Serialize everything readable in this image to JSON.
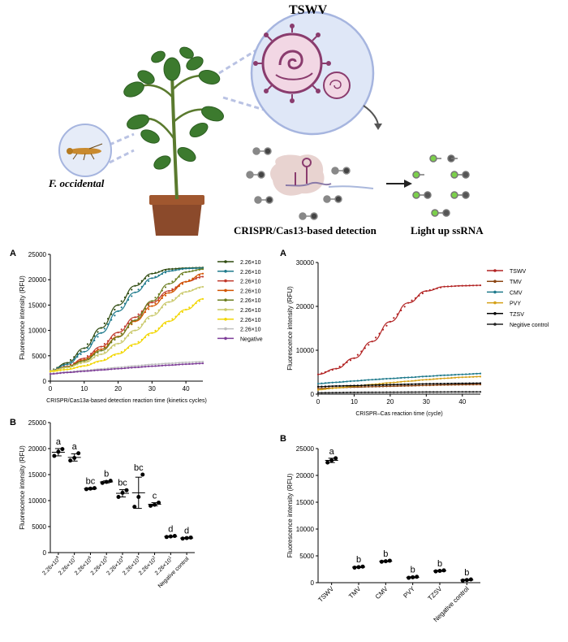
{
  "header": {
    "virus_title": "TSWV",
    "thrips_label": "F. occidental",
    "detection_label": "CRISPR/Cas13-based detection",
    "ssrna_label": "Light up ssRNA"
  },
  "panels": {
    "tl_letter": "A",
    "tr_letter": "A",
    "bl_letter": "B",
    "br_letter": "B"
  },
  "chart_data": [
    {
      "id": "tl",
      "type": "line",
      "xlabel": "CRISPR/Cas13a-based detection reaction time (kinetics cycles)",
      "ylabel": "Fluorescence intensity (RFU)",
      "xlim": [
        0,
        45
      ],
      "ylim": [
        0,
        25000
      ],
      "xticks": [
        0,
        10,
        20,
        30,
        40
      ],
      "yticks": [
        0,
        5000,
        10000,
        15000,
        20000,
        25000
      ],
      "ytick_labels": [
        "0",
        "5000",
        "10000",
        "15000",
        "20000",
        "25000"
      ],
      "x": [
        0,
        5,
        10,
        15,
        20,
        25,
        30,
        35,
        40,
        45
      ],
      "series": [
        {
          "name": "2.26×10",
          "color": "#2e4a0f",
          "values": [
            2000,
            3600,
            6500,
            10500,
            15000,
            18800,
            21200,
            22100,
            22300,
            22400
          ]
        },
        {
          "name": "2.26×10",
          "color": "#1f7a8c",
          "values": [
            2000,
            3300,
            5800,
            9500,
            13800,
            17500,
            20300,
            21700,
            22200,
            22300
          ]
        },
        {
          "name": "2.26×10",
          "color": "#c0392b",
          "values": [
            2000,
            2900,
            4500,
            6800,
            9600,
            12600,
            15500,
            17800,
            19600,
            20600
          ]
        },
        {
          "name": "2.26×10",
          "color": "#d35400",
          "values": [
            2000,
            2800,
            4200,
            6300,
            8800,
            11800,
            14800,
            17400,
            19600,
            21200
          ]
        },
        {
          "name": "2.26×10",
          "color": "#6b7d1f",
          "values": [
            2000,
            2800,
            4000,
            6000,
            8700,
            12000,
            15800,
            19200,
            21500,
            22100
          ]
        },
        {
          "name": "2.26×10",
          "color": "#c9c86a",
          "values": [
            2000,
            2700,
            3700,
            5300,
            7400,
            10000,
            12900,
            15600,
            17600,
            18600
          ]
        },
        {
          "name": "2.26×10",
          "color": "#f2d600",
          "values": [
            1900,
            2300,
            3000,
            4000,
            5400,
            7300,
            9500,
            11800,
            14100,
            16200
          ]
        },
        {
          "name": "2.26×10",
          "color": "#bfbfbf",
          "values": [
            1500,
            1800,
            2100,
            2400,
            2700,
            3000,
            3300,
            3500,
            3700,
            3850
          ]
        },
        {
          "name": "Negative",
          "color": "#7d3c98",
          "values": [
            1400,
            1700,
            1950,
            2200,
            2450,
            2700,
            2950,
            3150,
            3350,
            3500
          ]
        }
      ]
    },
    {
      "id": "tr",
      "type": "line",
      "xlabel": "CRISPR–Cas reaction time (cycle)",
      "ylabel": "Fluorescence intensity (RFU)",
      "xlim": [
        0,
        45
      ],
      "ylim": [
        0,
        30000
      ],
      "xticks": [
        0,
        10,
        20,
        30,
        40
      ],
      "yticks": [
        0,
        10000,
        20000,
        30000
      ],
      "ytick_labels": [
        "0",
        "10000",
        "20000",
        "30000"
      ],
      "x": [
        0,
        5,
        10,
        15,
        20,
        25,
        30,
        35,
        40,
        45
      ],
      "series": [
        {
          "name": "TSWV",
          "color": "#b22222",
          "values": [
            4500,
            5800,
            8200,
            12000,
            16500,
            20800,
            23500,
            24500,
            24700,
            24800
          ]
        },
        {
          "name": "TMV",
          "color": "#8b4513",
          "values": [
            1300,
            1450,
            1600,
            1700,
            1800,
            1900,
            2000,
            2100,
            2150,
            2200
          ]
        },
        {
          "name": "CMV",
          "color": "#1f7a8c",
          "values": [
            2400,
            2700,
            3000,
            3300,
            3550,
            3800,
            4050,
            4300,
            4500,
            4700
          ]
        },
        {
          "name": "PVY",
          "color": "#d4a017",
          "values": [
            1000,
            1400,
            1800,
            2200,
            2600,
            2950,
            3300,
            3600,
            3850,
            4000
          ]
        },
        {
          "name": "TZSV",
          "color": "#000000",
          "values": [
            1700,
            1850,
            1950,
            2050,
            2150,
            2250,
            2350,
            2400,
            2450,
            2500
          ]
        },
        {
          "name": "Negitive control",
          "color": "#222222",
          "values": [
            300,
            350,
            400,
            420,
            440,
            460,
            480,
            500,
            510,
            520
          ]
        }
      ]
    },
    {
      "id": "bl",
      "type": "scatter",
      "ylabel": "Fluorescence intensity (RFU)",
      "ylim": [
        0,
        25000
      ],
      "yticks": [
        0,
        5000,
        10000,
        15000,
        20000,
        25000
      ],
      "ytick_labels": [
        "0",
        "5000",
        "10000",
        "15000",
        "20000",
        "25000"
      ],
      "categories": [
        "2.26×10",
        "2.26×10",
        "2.26×10",
        "2.26×10",
        "2.26×10",
        "2.26×10",
        "2.26×10",
        "2.26×10",
        "Negative control"
      ],
      "category_exponents": [
        "8",
        "7",
        "6",
        "5",
        "4",
        "3",
        "2",
        "1",
        ""
      ],
      "means": [
        19300,
        18300,
        12300,
        13600,
        11400,
        11500,
        9300,
        3100,
        2800
      ],
      "points": [
        [
          18600,
          19400,
          19900
        ],
        [
          17700,
          18200,
          19100
        ],
        [
          12200,
          12300,
          12400
        ],
        [
          13400,
          13600,
          13800
        ],
        [
          10700,
          11500,
          12000
        ],
        [
          8800,
          10700,
          15000
        ],
        [
          9000,
          9200,
          9600
        ],
        [
          3000,
          3100,
          3200
        ],
        [
          2700,
          2800,
          2900
        ]
      ],
      "errors": [
        700,
        700,
        150,
        200,
        700,
        3000,
        300,
        100,
        100
      ],
      "letters": [
        "a",
        "a",
        "bc",
        "b",
        "bc",
        "bc",
        "c",
        "d",
        "d"
      ]
    },
    {
      "id": "br",
      "type": "scatter",
      "ylabel": "Fluorescence intensity (RFU)",
      "ylim": [
        0,
        25000
      ],
      "yticks": [
        0,
        5000,
        10000,
        15000,
        20000,
        25000
      ],
      "ytick_labels": [
        "0",
        "5000",
        "10000",
        "15000",
        "20000",
        "25000"
      ],
      "categories": [
        "TSWV",
        "TMV",
        "CMV",
        "PVY",
        "TZSV",
        "Negative control"
      ],
      "means": [
        22800,
        2900,
        4000,
        1000,
        2200,
        500
      ],
      "points": [
        [
          22400,
          22800,
          23200
        ],
        [
          2800,
          2900,
          3000
        ],
        [
          3900,
          4000,
          4100
        ],
        [
          900,
          1000,
          1100
        ],
        [
          2100,
          2200,
          2300
        ],
        [
          400,
          500,
          600
        ]
      ],
      "errors": [
        400,
        100,
        100,
        100,
        100,
        100
      ],
      "letters": [
        "a",
        "b",
        "b",
        "b",
        "b",
        "b"
      ]
    }
  ]
}
